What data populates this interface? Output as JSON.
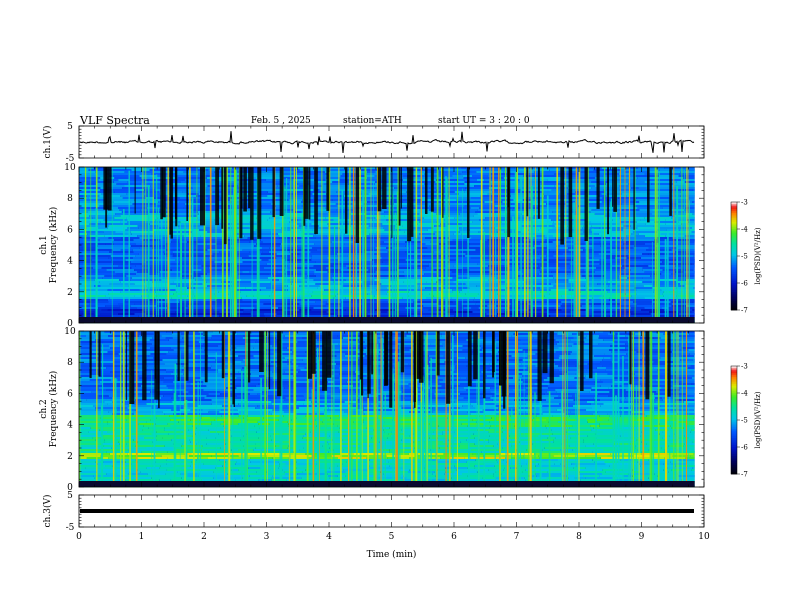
{
  "header": {
    "title": "VLF  Spectra",
    "date": "Feb. 5  , 2025",
    "station": "station=ATH",
    "start_ut": "start  UT  =    3  : 20 : 0"
  },
  "chart_data": [
    {
      "type": "line",
      "panel": "ch1-waveform",
      "ylabel": "ch.1(V)",
      "ylim": [
        -5,
        5
      ],
      "yticks": [
        5,
        -5
      ],
      "approx_level": 0,
      "color": "#000000"
    },
    {
      "type": "heatmap",
      "panel": "ch1-spectrogram",
      "ylabel": "ch.1\nFrequency (kHz)",
      "ylim": [
        0,
        10
      ],
      "yticks": [
        0,
        2,
        4,
        6,
        8,
        10
      ],
      "colorbar": {
        "label": "log(PSD)(V²/Hz)",
        "range": [
          -7,
          -3
        ],
        "ticks": [
          -3,
          -4,
          -5,
          -6,
          -7
        ]
      }
    },
    {
      "type": "heatmap",
      "panel": "ch2-spectrogram",
      "ylabel": "ch.2\nFrequency (kHz)",
      "ylim": [
        0,
        10
      ],
      "yticks": [
        0,
        2,
        4,
        6,
        8,
        10
      ],
      "colorbar": {
        "label": "log(PSD)(V²/Hz)",
        "range": [
          -7,
          -3
        ],
        "ticks": [
          -3,
          -4,
          -5,
          -6,
          -7
        ]
      }
    },
    {
      "type": "line",
      "panel": "ch3-waveform",
      "ylabel": "ch.3(V)",
      "ylim": [
        -5,
        5
      ],
      "yticks": [
        5,
        -5
      ],
      "approx_level": 0,
      "color": "#000000"
    }
  ],
  "x_axis": {
    "label": "Time  (min)",
    "ticks": [
      0,
      1,
      2,
      3,
      4,
      5,
      6,
      7,
      8,
      9,
      10
    ],
    "xlim": [
      0,
      10
    ],
    "data_end": 9.85
  }
}
